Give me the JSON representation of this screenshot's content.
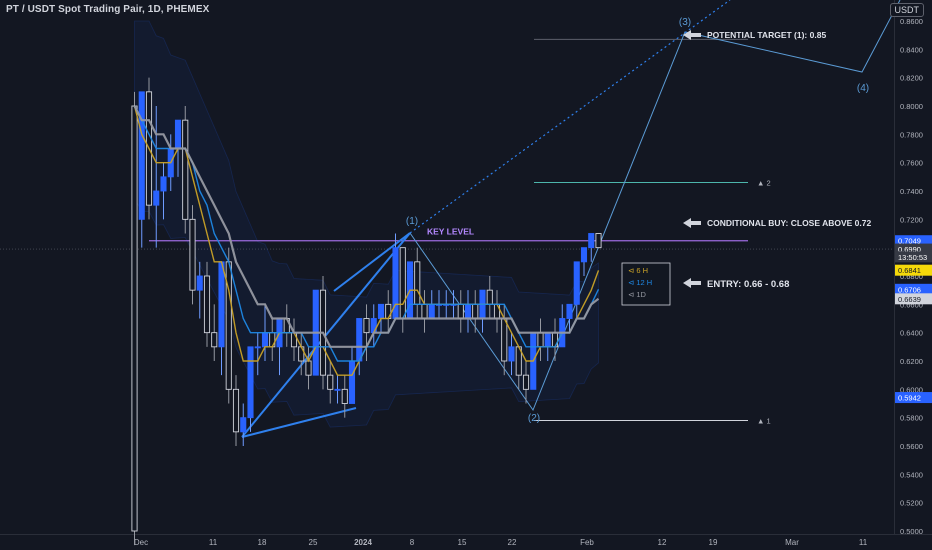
{
  "header": {
    "symbol_title": "PT / USDT Spot Trading Pair, 1D, PHEMEX",
    "currency_button": "USDT"
  },
  "chart_data": {
    "type": "candlestick",
    "x_axis": {
      "tick_labels": [
        "Dec",
        "11",
        "18",
        "25",
        "2024",
        "8",
        "15",
        "22",
        "Feb",
        "12",
        "19",
        "Mar",
        "11"
      ],
      "bold_labels": [
        "2024"
      ]
    },
    "y_axis": {
      "ylim": [
        0.5,
        0.87
      ],
      "ticks": [
        0.5,
        0.52,
        0.54,
        0.56,
        0.58,
        0.6,
        0.62,
        0.64,
        0.66,
        0.68,
        0.7,
        0.72,
        0.74,
        0.76,
        0.78,
        0.8,
        0.82,
        0.84,
        0.86
      ],
      "tick_labels": [
        "0.5000",
        "0.5200",
        "0.5400",
        "0.5600",
        "0.5800",
        "0.6000",
        "0.6200",
        "0.6400",
        "0.6600",
        "0.6800",
        "0.7000",
        "0.7200",
        "0.7400",
        "0.7600",
        "0.7800",
        "0.8000",
        "0.8200",
        "0.8400",
        "0.8600"
      ]
    },
    "candles": [
      {
        "o": 0.8,
        "h": 0.81,
        "l": 0.49,
        "c": 0.5
      },
      {
        "o": 0.72,
        "h": 0.81,
        "l": 0.7,
        "c": 0.81
      },
      {
        "o": 0.81,
        "h": 0.82,
        "l": 0.72,
        "c": 0.73
      },
      {
        "o": 0.73,
        "h": 0.8,
        "l": 0.7,
        "c": 0.74
      },
      {
        "o": 0.74,
        "h": 0.76,
        "l": 0.72,
        "c": 0.75
      },
      {
        "o": 0.75,
        "h": 0.78,
        "l": 0.74,
        "c": 0.77
      },
      {
        "o": 0.77,
        "h": 0.79,
        "l": 0.75,
        "c": 0.79
      },
      {
        "o": 0.79,
        "h": 0.8,
        "l": 0.71,
        "c": 0.72
      },
      {
        "o": 0.72,
        "h": 0.73,
        "l": 0.66,
        "c": 0.67
      },
      {
        "o": 0.67,
        "h": 0.69,
        "l": 0.65,
        "c": 0.68
      },
      {
        "o": 0.68,
        "h": 0.69,
        "l": 0.63,
        "c": 0.64
      },
      {
        "o": 0.64,
        "h": 0.66,
        "l": 0.62,
        "c": 0.63
      },
      {
        "o": 0.63,
        "h": 0.69,
        "l": 0.61,
        "c": 0.69
      },
      {
        "o": 0.69,
        "h": 0.7,
        "l": 0.59,
        "c": 0.6
      },
      {
        "o": 0.6,
        "h": 0.61,
        "l": 0.56,
        "c": 0.57
      },
      {
        "o": 0.57,
        "h": 0.59,
        "l": 0.56,
        "c": 0.58
      },
      {
        "o": 0.58,
        "h": 0.63,
        "l": 0.57,
        "c": 0.63
      },
      {
        "o": 0.63,
        "h": 0.64,
        "l": 0.61,
        "c": 0.63
      },
      {
        "o": 0.63,
        "h": 0.66,
        "l": 0.62,
        "c": 0.64
      },
      {
        "o": 0.64,
        "h": 0.65,
        "l": 0.62,
        "c": 0.63
      },
      {
        "o": 0.63,
        "h": 0.65,
        "l": 0.61,
        "c": 0.65
      },
      {
        "o": 0.65,
        "h": 0.66,
        "l": 0.63,
        "c": 0.64
      },
      {
        "o": 0.64,
        "h": 0.65,
        "l": 0.62,
        "c": 0.63
      },
      {
        "o": 0.63,
        "h": 0.64,
        "l": 0.61,
        "c": 0.62
      },
      {
        "o": 0.62,
        "h": 0.63,
        "l": 0.6,
        "c": 0.61
      },
      {
        "o": 0.61,
        "h": 0.67,
        "l": 0.61,
        "c": 0.67
      },
      {
        "o": 0.67,
        "h": 0.68,
        "l": 0.6,
        "c": 0.61
      },
      {
        "o": 0.61,
        "h": 0.62,
        "l": 0.59,
        "c": 0.6
      },
      {
        "o": 0.6,
        "h": 0.61,
        "l": 0.59,
        "c": 0.6
      },
      {
        "o": 0.6,
        "h": 0.61,
        "l": 0.58,
        "c": 0.59
      },
      {
        "o": 0.59,
        "h": 0.63,
        "l": 0.59,
        "c": 0.62
      },
      {
        "o": 0.62,
        "h": 0.65,
        "l": 0.61,
        "c": 0.65
      },
      {
        "o": 0.65,
        "h": 0.66,
        "l": 0.62,
        "c": 0.64
      },
      {
        "o": 0.64,
        "h": 0.66,
        "l": 0.63,
        "c": 0.65
      },
      {
        "o": 0.65,
        "h": 0.66,
        "l": 0.64,
        "c": 0.66
      },
      {
        "o": 0.66,
        "h": 0.67,
        "l": 0.64,
        "c": 0.65
      },
      {
        "o": 0.65,
        "h": 0.71,
        "l": 0.65,
        "c": 0.7
      },
      {
        "o": 0.7,
        "h": 0.7,
        "l": 0.64,
        "c": 0.65
      },
      {
        "o": 0.65,
        "h": 0.69,
        "l": 0.65,
        "c": 0.69
      },
      {
        "o": 0.69,
        "h": 0.7,
        "l": 0.65,
        "c": 0.66
      },
      {
        "o": 0.66,
        "h": 0.67,
        "l": 0.64,
        "c": 0.65
      },
      {
        "o": 0.65,
        "h": 0.67,
        "l": 0.65,
        "c": 0.66
      },
      {
        "o": 0.66,
        "h": 0.67,
        "l": 0.65,
        "c": 0.66
      },
      {
        "o": 0.66,
        "h": 0.67,
        "l": 0.65,
        "c": 0.66
      },
      {
        "o": 0.66,
        "h": 0.67,
        "l": 0.65,
        "c": 0.66
      },
      {
        "o": 0.66,
        "h": 0.67,
        "l": 0.64,
        "c": 0.65
      },
      {
        "o": 0.65,
        "h": 0.67,
        "l": 0.64,
        "c": 0.66
      },
      {
        "o": 0.66,
        "h": 0.67,
        "l": 0.64,
        "c": 0.65
      },
      {
        "o": 0.65,
        "h": 0.67,
        "l": 0.64,
        "c": 0.67
      },
      {
        "o": 0.67,
        "h": 0.68,
        "l": 0.65,
        "c": 0.66
      },
      {
        "o": 0.66,
        "h": 0.67,
        "l": 0.64,
        "c": 0.65
      },
      {
        "o": 0.65,
        "h": 0.66,
        "l": 0.61,
        "c": 0.62
      },
      {
        "o": 0.62,
        "h": 0.64,
        "l": 0.61,
        "c": 0.63
      },
      {
        "o": 0.63,
        "h": 0.63,
        "l": 0.6,
        "c": 0.61
      },
      {
        "o": 0.61,
        "h": 0.62,
        "l": 0.59,
        "c": 0.6
      },
      {
        "o": 0.6,
        "h": 0.64,
        "l": 0.6,
        "c": 0.64
      },
      {
        "o": 0.64,
        "h": 0.65,
        "l": 0.62,
        "c": 0.63
      },
      {
        "o": 0.63,
        "h": 0.64,
        "l": 0.62,
        "c": 0.64
      },
      {
        "o": 0.64,
        "h": 0.65,
        "l": 0.62,
        "c": 0.63
      },
      {
        "o": 0.63,
        "h": 0.66,
        "l": 0.63,
        "c": 0.65
      },
      {
        "o": 0.65,
        "h": 0.66,
        "l": 0.64,
        "c": 0.66
      },
      {
        "o": 0.66,
        "h": 0.69,
        "l": 0.65,
        "c": 0.69
      },
      {
        "o": 0.69,
        "h": 0.7,
        "l": 0.68,
        "c": 0.7
      },
      {
        "o": 0.7,
        "h": 0.71,
        "l": 0.69,
        "c": 0.71
      },
      {
        "o": 0.71,
        "h": 0.71,
        "l": 0.7,
        "c": 0.7
      }
    ],
    "moving_averages": [
      {
        "name": "",
        "color": "#c9a227",
        "values": [
          0.8,
          0.78,
          0.77,
          0.76,
          0.76,
          0.76,
          0.77,
          0.77,
          0.75,
          0.73,
          0.71,
          0.69,
          0.69,
          0.67,
          0.64,
          0.62,
          0.62,
          0.62,
          0.63,
          0.63,
          0.64,
          0.64,
          0.64,
          0.63,
          0.62,
          0.63,
          0.63,
          0.62,
          0.61,
          0.61,
          0.61,
          0.62,
          0.63,
          0.64,
          0.65,
          0.65,
          0.66,
          0.66,
          0.67,
          0.67,
          0.66,
          0.66,
          0.66,
          0.66,
          0.66,
          0.66,
          0.66,
          0.66,
          0.66,
          0.66,
          0.66,
          0.65,
          0.64,
          0.63,
          0.62,
          0.62,
          0.63,
          0.63,
          0.63,
          0.64,
          0.64,
          0.65,
          0.66,
          0.67,
          0.684
        ]
      },
      {
        "name": "",
        "color": "#1e88e5",
        "values": [
          0.8,
          0.79,
          0.78,
          0.77,
          0.77,
          0.77,
          0.77,
          0.77,
          0.76,
          0.74,
          0.73,
          0.71,
          0.7,
          0.69,
          0.67,
          0.65,
          0.64,
          0.64,
          0.64,
          0.64,
          0.64,
          0.64,
          0.64,
          0.64,
          0.63,
          0.63,
          0.63,
          0.63,
          0.62,
          0.62,
          0.62,
          0.62,
          0.63,
          0.63,
          0.64,
          0.64,
          0.65,
          0.65,
          0.66,
          0.66,
          0.66,
          0.66,
          0.66,
          0.66,
          0.66,
          0.66,
          0.66,
          0.66,
          0.66,
          0.66,
          0.66,
          0.66,
          0.65,
          0.64,
          0.63,
          0.63,
          0.63,
          0.63,
          0.63,
          0.64,
          0.64,
          0.65,
          0.65,
          0.66,
          0.6706
        ]
      },
      {
        "name": "",
        "color": "#9598a1",
        "values": [
          0.8,
          0.79,
          0.79,
          0.78,
          0.78,
          0.77,
          0.77,
          0.77,
          0.76,
          0.75,
          0.74,
          0.73,
          0.72,
          0.71,
          0.69,
          0.68,
          0.67,
          0.66,
          0.66,
          0.65,
          0.65,
          0.65,
          0.64,
          0.64,
          0.64,
          0.64,
          0.64,
          0.63,
          0.63,
          0.63,
          0.63,
          0.63,
          0.63,
          0.64,
          0.64,
          0.64,
          0.65,
          0.65,
          0.65,
          0.65,
          0.65,
          0.65,
          0.65,
          0.65,
          0.65,
          0.65,
          0.65,
          0.65,
          0.65,
          0.65,
          0.65,
          0.65,
          0.65,
          0.64,
          0.64,
          0.64,
          0.64,
          0.64,
          0.64,
          0.64,
          0.64,
          0.65,
          0.65,
          0.66,
          0.6639
        ]
      }
    ],
    "price_labels": [
      {
        "value": 0.7049,
        "text": "0.7049",
        "bg": "#2962ff"
      },
      {
        "value": 0.699,
        "text": "0.6990",
        "bg": "#363a45"
      },
      {
        "value": 0.6935,
        "text": "13:50:53",
        "bg": "#363a45"
      },
      {
        "value": 0.6841,
        "text": "0.6841",
        "bg": "#f5d90a"
      },
      {
        "value": 0.6706,
        "text": "0.6706",
        "bg": "#2962ff"
      },
      {
        "value": 0.6639,
        "text": "0.6639",
        "bg": "#d1d4dc"
      },
      {
        "value": 0.5942,
        "text": "0.5942",
        "bg": "#2962ff"
      }
    ],
    "annotations": {
      "key_level": {
        "text": "KEY LEVEL",
        "value": 0.7049
      },
      "wave_labels": [
        "(1)",
        "(2)",
        "(3)",
        "(4)"
      ],
      "potential_target": "POTENTIAL TARGET (1): 0.85",
      "conditional_buy": "CONDITIONAL BUY: CLOSE ABOVE 0.72",
      "entry": "ENTRY: 0.66 - 0.68",
      "level_marks": [
        "▲ 2",
        "▲ 1"
      ],
      "ma_box_labels": [
        "⊲ 6 H",
        "⊲ 12 H",
        "⊲ 1D"
      ]
    }
  }
}
